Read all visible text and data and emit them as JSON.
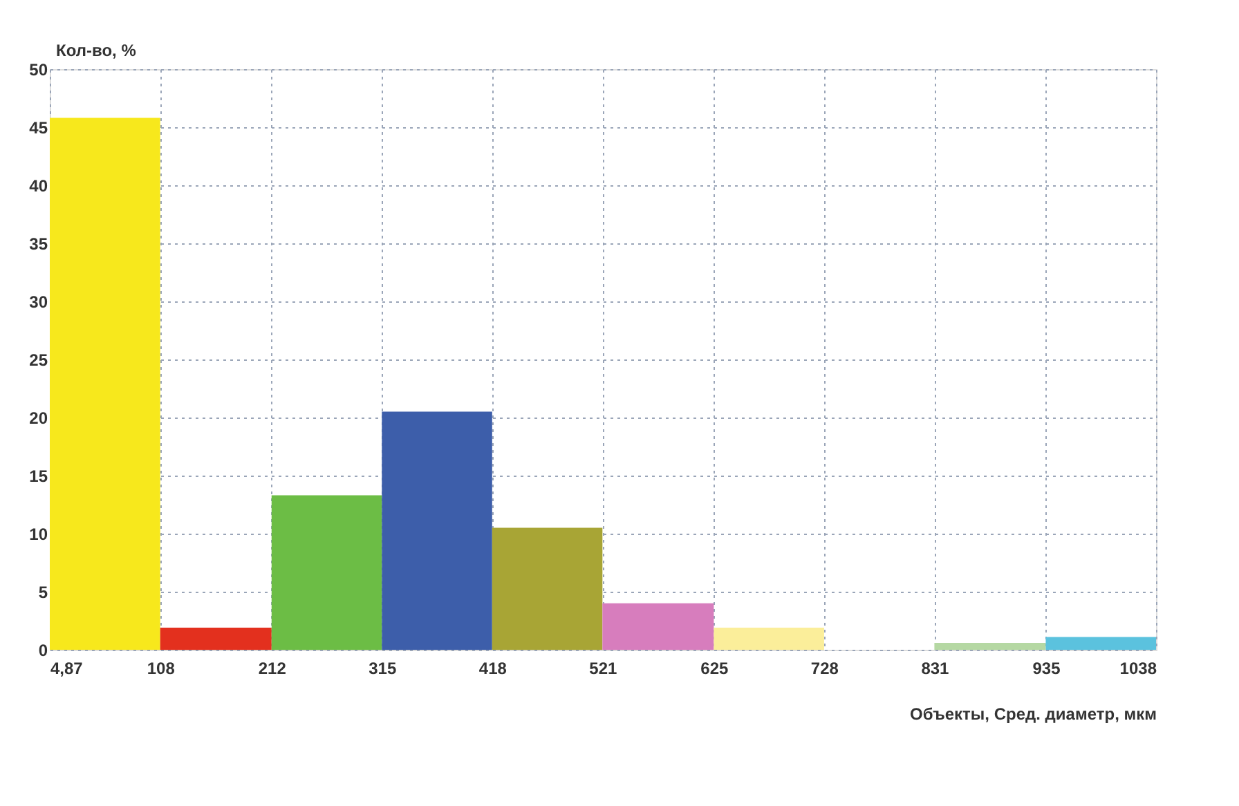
{
  "chart_data": {
    "type": "histogram",
    "ylabel": "Кол-во, %",
    "xlabel": "Объекты, Сред. диаметр, мкм",
    "bins": [
      4.87,
      108,
      212,
      315,
      418,
      521,
      625,
      728,
      831,
      935,
      1038
    ],
    "values": [
      45.8,
      1.9,
      13.3,
      20.5,
      10.5,
      4.0,
      1.9,
      0,
      0.6,
      1.1
    ],
    "colors": [
      "#f7e81c",
      "#e3301e",
      "#6cbd45",
      "#3d5eaa",
      "#a8a535",
      "#d77dbd",
      "#fbee9a",
      "#ffffff",
      "#b5d8a3",
      "#5bc2de"
    ],
    "xlim": [
      4.87,
      1038
    ],
    "xticks": [
      {
        "value": 4.87,
        "label": "4,87"
      },
      108,
      212,
      315,
      418,
      521,
      625,
      728,
      831,
      935,
      1038
    ],
    "ylim": [
      0,
      50
    ],
    "yticks": [
      0,
      5,
      10,
      15,
      20,
      25,
      30,
      35,
      40,
      45,
      50
    ],
    "grid": true
  }
}
